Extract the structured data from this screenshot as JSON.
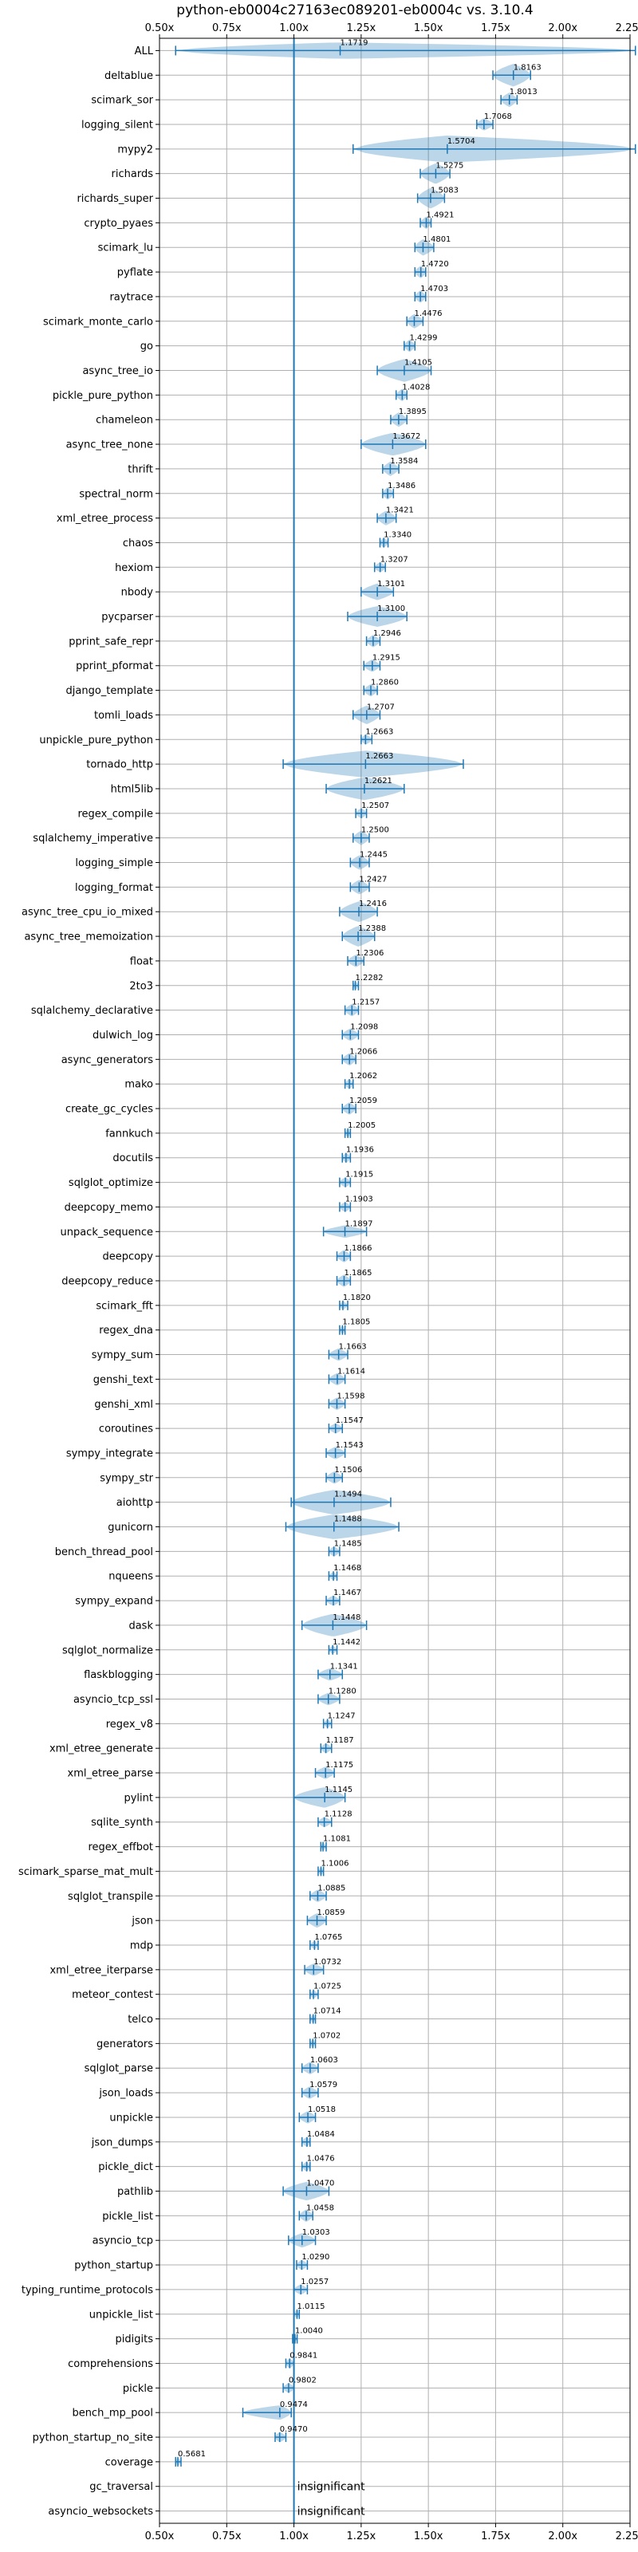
{
  "chart_data": {
    "type": "violin",
    "title": "python-eb0004c27163ec089201-eb0004c vs. 3.10.4",
    "xlim": [
      0.5,
      2.25
    ],
    "x_ticks": [
      0.5,
      0.75,
      1.0,
      1.25,
      1.5,
      1.75,
      2.0,
      2.25
    ],
    "x_tick_labels": [
      "0.50x",
      "0.75x",
      "1.00x",
      "1.25x",
      "1.50x",
      "1.75x",
      "2.00x",
      "2.25x"
    ],
    "reference_x": 1.0,
    "grid": true,
    "series_color": "#1f77b4",
    "insignificant_label": "insignificant",
    "benchmarks": [
      {
        "name": "ALL",
        "label": "1.1719",
        "mean": 1.1719,
        "min": 0.56,
        "max": 2.27,
        "width": 0.8
      },
      {
        "name": "deltablue",
        "label": "1.8163",
        "mean": 1.8163,
        "min": 1.74,
        "max": 1.88,
        "width": 1.1
      },
      {
        "name": "scimark_sor",
        "label": "1.8013",
        "mean": 1.8013,
        "min": 1.77,
        "max": 1.83,
        "width": 0.7
      },
      {
        "name": "logging_silent",
        "label": "1.7068",
        "mean": 1.7068,
        "min": 1.68,
        "max": 1.74,
        "width": 0.6
      },
      {
        "name": "mypy2",
        "label": "1.5704",
        "mean": 1.5704,
        "min": 1.22,
        "max": 2.27,
        "width": 1.3
      },
      {
        "name": "richards",
        "label": "1.5275",
        "mean": 1.5275,
        "min": 1.47,
        "max": 1.58,
        "width": 1.0
      },
      {
        "name": "richards_super",
        "label": "1.5083",
        "mean": 1.5083,
        "min": 1.46,
        "max": 1.56,
        "width": 1.0
      },
      {
        "name": "crypto_pyaes",
        "label": "1.4921",
        "mean": 1.4921,
        "min": 1.47,
        "max": 1.51,
        "width": 0.6
      },
      {
        "name": "scimark_lu",
        "label": "1.4801",
        "mean": 1.4801,
        "min": 1.45,
        "max": 1.52,
        "width": 0.8
      },
      {
        "name": "pyflate",
        "label": "1.4720",
        "mean": 1.472,
        "min": 1.45,
        "max": 1.49,
        "width": 0.6
      },
      {
        "name": "raytrace",
        "label": "1.4703",
        "mean": 1.4703,
        "min": 1.45,
        "max": 1.49,
        "width": 0.6
      },
      {
        "name": "scimark_monte_carlo",
        "label": "1.4476",
        "mean": 1.4476,
        "min": 1.42,
        "max": 1.48,
        "width": 0.7
      },
      {
        "name": "go",
        "label": "1.4299",
        "mean": 1.4299,
        "min": 1.41,
        "max": 1.45,
        "width": 0.6
      },
      {
        "name": "async_tree_io",
        "label": "1.4105",
        "mean": 1.4105,
        "min": 1.31,
        "max": 1.51,
        "width": 1.1
      },
      {
        "name": "pickle_pure_python",
        "label": "1.4028",
        "mean": 1.4028,
        "min": 1.38,
        "max": 1.42,
        "width": 0.6
      },
      {
        "name": "chameleon",
        "label": "1.3895",
        "mean": 1.3895,
        "min": 1.36,
        "max": 1.42,
        "width": 0.7
      },
      {
        "name": "async_tree_none",
        "label": "1.3672",
        "mean": 1.3672,
        "min": 1.25,
        "max": 1.49,
        "width": 1.1
      },
      {
        "name": "thrift",
        "label": "1.3584",
        "mean": 1.3584,
        "min": 1.33,
        "max": 1.39,
        "width": 0.7
      },
      {
        "name": "spectral_norm",
        "label": "1.3486",
        "mean": 1.3486,
        "min": 1.33,
        "max": 1.37,
        "width": 0.6
      },
      {
        "name": "xml_etree_process",
        "label": "1.3421",
        "mean": 1.3421,
        "min": 1.31,
        "max": 1.38,
        "width": 0.7
      },
      {
        "name": "chaos",
        "label": "1.3340",
        "mean": 1.334,
        "min": 1.32,
        "max": 1.35,
        "width": 0.5
      },
      {
        "name": "hexiom",
        "label": "1.3207",
        "mean": 1.3207,
        "min": 1.3,
        "max": 1.34,
        "width": 0.5
      },
      {
        "name": "nbody",
        "label": "1.3101",
        "mean": 1.3101,
        "min": 1.25,
        "max": 1.37,
        "width": 0.8
      },
      {
        "name": "pycparser",
        "label": "1.3100",
        "mean": 1.31,
        "min": 1.2,
        "max": 1.42,
        "width": 1.0
      },
      {
        "name": "pprint_safe_repr",
        "label": "1.2946",
        "mean": 1.2946,
        "min": 1.27,
        "max": 1.32,
        "width": 0.6
      },
      {
        "name": "pprint_pformat",
        "label": "1.2915",
        "mean": 1.2915,
        "min": 1.26,
        "max": 1.32,
        "width": 0.6
      },
      {
        "name": "django_template",
        "label": "1.2860",
        "mean": 1.286,
        "min": 1.26,
        "max": 1.31,
        "width": 0.6
      },
      {
        "name": "tomli_loads",
        "label": "1.2707",
        "mean": 1.2707,
        "min": 1.22,
        "max": 1.32,
        "width": 0.9
      },
      {
        "name": "unpickle_pure_python",
        "label": "1.2663",
        "mean": 1.2663,
        "min": 1.25,
        "max": 1.29,
        "width": 0.5
      },
      {
        "name": "tornado_http",
        "label": "1.2663",
        "mean": 1.2663,
        "min": 0.96,
        "max": 1.63,
        "width": 1.3
      },
      {
        "name": "html5lib",
        "label": "1.2621",
        "mean": 1.2621,
        "min": 1.12,
        "max": 1.41,
        "width": 1.1
      },
      {
        "name": "regex_compile",
        "label": "1.2507",
        "mean": 1.2507,
        "min": 1.23,
        "max": 1.27,
        "width": 0.5
      },
      {
        "name": "sqlalchemy_imperative",
        "label": "1.2500",
        "mean": 1.25,
        "min": 1.22,
        "max": 1.28,
        "width": 0.7
      },
      {
        "name": "logging_simple",
        "label": "1.2445",
        "mean": 1.2445,
        "min": 1.21,
        "max": 1.28,
        "width": 0.7
      },
      {
        "name": "logging_format",
        "label": "1.2427",
        "mean": 1.2427,
        "min": 1.21,
        "max": 1.28,
        "width": 0.7
      },
      {
        "name": "async_tree_cpu_io_mixed",
        "label": "1.2416",
        "mean": 1.2416,
        "min": 1.17,
        "max": 1.31,
        "width": 1.0
      },
      {
        "name": "async_tree_memoization",
        "label": "1.2388",
        "mean": 1.2388,
        "min": 1.18,
        "max": 1.3,
        "width": 1.0
      },
      {
        "name": "float",
        "label": "1.2306",
        "mean": 1.2306,
        "min": 1.2,
        "max": 1.26,
        "width": 0.6
      },
      {
        "name": "2to3",
        "label": "1.2282",
        "mean": 1.2282,
        "min": 1.22,
        "max": 1.24,
        "width": 0.4
      },
      {
        "name": "sqlalchemy_declarative",
        "label": "1.2157",
        "mean": 1.2157,
        "min": 1.19,
        "max": 1.24,
        "width": 0.6
      },
      {
        "name": "dulwich_log",
        "label": "1.2098",
        "mean": 1.2098,
        "min": 1.18,
        "max": 1.24,
        "width": 0.6
      },
      {
        "name": "async_generators",
        "label": "1.2066",
        "mean": 1.2066,
        "min": 1.18,
        "max": 1.23,
        "width": 0.6
      },
      {
        "name": "mako",
        "label": "1.2062",
        "mean": 1.2062,
        "min": 1.19,
        "max": 1.22,
        "width": 0.5
      },
      {
        "name": "create_gc_cycles",
        "label": "1.2059",
        "mean": 1.2059,
        "min": 1.18,
        "max": 1.23,
        "width": 0.6
      },
      {
        "name": "fannkuch",
        "label": "1.2005",
        "mean": 1.2005,
        "min": 1.19,
        "max": 1.21,
        "width": 0.4
      },
      {
        "name": "docutils",
        "label": "1.1936",
        "mean": 1.1936,
        "min": 1.18,
        "max": 1.21,
        "width": 0.5
      },
      {
        "name": "sqlglot_optimize",
        "label": "1.1915",
        "mean": 1.1915,
        "min": 1.17,
        "max": 1.21,
        "width": 0.5
      },
      {
        "name": "deepcopy_memo",
        "label": "1.1903",
        "mean": 1.1903,
        "min": 1.17,
        "max": 1.21,
        "width": 0.5
      },
      {
        "name": "unpack_sequence",
        "label": "1.1897",
        "mean": 1.1897,
        "min": 1.11,
        "max": 1.27,
        "width": 0.6
      },
      {
        "name": "deepcopy",
        "label": "1.1866",
        "mean": 1.1866,
        "min": 1.16,
        "max": 1.21,
        "width": 0.6
      },
      {
        "name": "deepcopy_reduce",
        "label": "1.1865",
        "mean": 1.1865,
        "min": 1.16,
        "max": 1.21,
        "width": 0.6
      },
      {
        "name": "scimark_fft",
        "label": "1.1820",
        "mean": 1.182,
        "min": 1.17,
        "max": 1.2,
        "width": 0.4
      },
      {
        "name": "regex_dna",
        "label": "1.1805",
        "mean": 1.1805,
        "min": 1.17,
        "max": 1.19,
        "width": 0.4
      },
      {
        "name": "sympy_sum",
        "label": "1.1663",
        "mean": 1.1663,
        "min": 1.13,
        "max": 1.2,
        "width": 0.6
      },
      {
        "name": "genshi_text",
        "label": "1.1614",
        "mean": 1.1614,
        "min": 1.13,
        "max": 1.19,
        "width": 0.6
      },
      {
        "name": "genshi_xml",
        "label": "1.1598",
        "mean": 1.1598,
        "min": 1.13,
        "max": 1.19,
        "width": 0.6
      },
      {
        "name": "coroutines",
        "label": "1.1547",
        "mean": 1.1547,
        "min": 1.13,
        "max": 1.18,
        "width": 0.5
      },
      {
        "name": "sympy_integrate",
        "label": "1.1543",
        "mean": 1.1543,
        "min": 1.12,
        "max": 1.19,
        "width": 0.6
      },
      {
        "name": "sympy_str",
        "label": "1.1506",
        "mean": 1.1506,
        "min": 1.12,
        "max": 1.18,
        "width": 0.6
      },
      {
        "name": "aiohttp",
        "label": "1.1494",
        "mean": 1.1494,
        "min": 0.99,
        "max": 1.36,
        "width": 1.2
      },
      {
        "name": "gunicorn",
        "label": "1.1488",
        "mean": 1.1488,
        "min": 0.97,
        "max": 1.39,
        "width": 1.2
      },
      {
        "name": "bench_thread_pool",
        "label": "1.1485",
        "mean": 1.1485,
        "min": 1.13,
        "max": 1.17,
        "width": 0.5
      },
      {
        "name": "nqueens",
        "label": "1.1468",
        "mean": 1.1468,
        "min": 1.13,
        "max": 1.16,
        "width": 0.4
      },
      {
        "name": "sympy_expand",
        "label": "1.1467",
        "mean": 1.1467,
        "min": 1.12,
        "max": 1.17,
        "width": 0.5
      },
      {
        "name": "dask",
        "label": "1.1448",
        "mean": 1.1448,
        "min": 1.03,
        "max": 1.27,
        "width": 1.1
      },
      {
        "name": "sqlglot_normalize",
        "label": "1.1442",
        "mean": 1.1442,
        "min": 1.13,
        "max": 1.16,
        "width": 0.4
      },
      {
        "name": "flaskblogging",
        "label": "1.1341",
        "mean": 1.1341,
        "min": 1.09,
        "max": 1.18,
        "width": 0.6
      },
      {
        "name": "asyncio_tcp_ssl",
        "label": "1.1280",
        "mean": 1.128,
        "min": 1.09,
        "max": 1.17,
        "width": 0.6
      },
      {
        "name": "regex_v8",
        "label": "1.1247",
        "mean": 1.1247,
        "min": 1.11,
        "max": 1.14,
        "width": 0.4
      },
      {
        "name": "xml_etree_generate",
        "label": "1.1187",
        "mean": 1.1187,
        "min": 1.1,
        "max": 1.14,
        "width": 0.5
      },
      {
        "name": "xml_etree_parse",
        "label": "1.1175",
        "mean": 1.1175,
        "min": 1.08,
        "max": 1.15,
        "width": 0.6
      },
      {
        "name": "pylint",
        "label": "1.1145",
        "mean": 1.1145,
        "min": 1.0,
        "max": 1.19,
        "width": 1.0
      },
      {
        "name": "sqlite_synth",
        "label": "1.1128",
        "mean": 1.1128,
        "min": 1.09,
        "max": 1.14,
        "width": 0.5
      },
      {
        "name": "regex_effbot",
        "label": "1.1081",
        "mean": 1.1081,
        "min": 1.1,
        "max": 1.12,
        "width": 0.4
      },
      {
        "name": "scimark_sparse_mat_mult",
        "label": "1.1006",
        "mean": 1.1006,
        "min": 1.09,
        "max": 1.11,
        "width": 0.4
      },
      {
        "name": "sqlglot_transpile",
        "label": "1.0885",
        "mean": 1.0885,
        "min": 1.06,
        "max": 1.12,
        "width": 0.6
      },
      {
        "name": "json",
        "label": "1.0859",
        "mean": 1.0859,
        "min": 1.05,
        "max": 1.12,
        "width": 0.7
      },
      {
        "name": "mdp",
        "label": "1.0765",
        "mean": 1.0765,
        "min": 1.06,
        "max": 1.09,
        "width": 0.4
      },
      {
        "name": "xml_etree_iterparse",
        "label": "1.0732",
        "mean": 1.0732,
        "min": 1.04,
        "max": 1.11,
        "width": 0.6
      },
      {
        "name": "meteor_contest",
        "label": "1.0725",
        "mean": 1.0725,
        "min": 1.06,
        "max": 1.09,
        "width": 0.4
      },
      {
        "name": "telco",
        "label": "1.0714",
        "mean": 1.0714,
        "min": 1.06,
        "max": 1.08,
        "width": 0.4
      },
      {
        "name": "generators",
        "label": "1.0702",
        "mean": 1.0702,
        "min": 1.06,
        "max": 1.08,
        "width": 0.4
      },
      {
        "name": "sqlglot_parse",
        "label": "1.0603",
        "mean": 1.0603,
        "min": 1.03,
        "max": 1.09,
        "width": 0.6
      },
      {
        "name": "json_loads",
        "label": "1.0579",
        "mean": 1.0579,
        "min": 1.03,
        "max": 1.09,
        "width": 0.6
      },
      {
        "name": "unpickle",
        "label": "1.0518",
        "mean": 1.0518,
        "min": 1.02,
        "max": 1.08,
        "width": 0.6
      },
      {
        "name": "json_dumps",
        "label": "1.0484",
        "mean": 1.0484,
        "min": 1.03,
        "max": 1.06,
        "width": 0.5
      },
      {
        "name": "pickle_dict",
        "label": "1.0476",
        "mean": 1.0476,
        "min": 1.03,
        "max": 1.06,
        "width": 0.5
      },
      {
        "name": "pathlib",
        "label": "1.0470",
        "mean": 1.047,
        "min": 0.96,
        "max": 1.13,
        "width": 0.9
      },
      {
        "name": "pickle_list",
        "label": "1.0458",
        "mean": 1.0458,
        "min": 1.02,
        "max": 1.07,
        "width": 0.6
      },
      {
        "name": "asyncio_tcp",
        "label": "1.0303",
        "mean": 1.0303,
        "min": 0.98,
        "max": 1.08,
        "width": 0.7
      },
      {
        "name": "python_startup",
        "label": "1.0290",
        "mean": 1.029,
        "min": 1.01,
        "max": 1.05,
        "width": 0.5
      },
      {
        "name": "typing_runtime_protocols",
        "label": "1.0257",
        "mean": 1.0257,
        "min": 1.0,
        "max": 1.05,
        "width": 0.5
      },
      {
        "name": "unpickle_list",
        "label": "1.0115",
        "mean": 1.0115,
        "min": 1.0,
        "max": 1.02,
        "width": 0.4
      },
      {
        "name": "pidigits",
        "label": "1.0040",
        "mean": 1.004,
        "min": 0.995,
        "max": 1.012,
        "width": 0.3
      },
      {
        "name": "comprehensions",
        "label": "0.9841",
        "mean": 0.9841,
        "min": 0.97,
        "max": 1.0,
        "width": 0.5
      },
      {
        "name": "pickle",
        "label": "0.9802",
        "mean": 0.9802,
        "min": 0.96,
        "max": 1.0,
        "width": 0.5
      },
      {
        "name": "bench_mp_pool",
        "label": "0.9474",
        "mean": 0.9474,
        "min": 0.81,
        "max": 0.99,
        "width": 0.7
      },
      {
        "name": "python_startup_no_site",
        "label": "0.9470",
        "mean": 0.947,
        "min": 0.93,
        "max": 0.97,
        "width": 0.5
      },
      {
        "name": "coverage",
        "label": "0.5681",
        "mean": 0.5681,
        "min": 0.56,
        "max": 0.58,
        "width": 0.4
      },
      {
        "name": "gc_traversal",
        "label": "insignificant",
        "insignificant": true
      },
      {
        "name": "asyncio_websockets",
        "label": "insignificant",
        "insignificant": true
      }
    ]
  }
}
